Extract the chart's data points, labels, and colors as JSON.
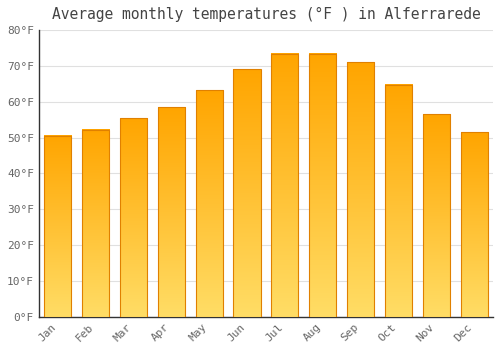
{
  "title": "Average monthly temperatures (°F ) in Alferrarede",
  "months": [
    "Jan",
    "Feb",
    "Mar",
    "Apr",
    "May",
    "Jun",
    "Jul",
    "Aug",
    "Sep",
    "Oct",
    "Nov",
    "Dec"
  ],
  "values": [
    50.5,
    52.2,
    55.4,
    58.5,
    63.3,
    69.0,
    73.4,
    73.4,
    71.1,
    64.8,
    56.5,
    51.6
  ],
  "bar_color_top": "#FFCC44",
  "bar_color_bottom": "#FFA500",
  "bar_edge_color": "#E08000",
  "background_color": "#FFFFFF",
  "plot_bg_color": "#FFFFFF",
  "grid_color": "#E0E0E0",
  "text_color": "#666666",
  "spine_color": "#333333",
  "ylim": [
    0,
    80
  ],
  "ytick_step": 10,
  "title_fontsize": 10.5,
  "tick_fontsize": 8
}
